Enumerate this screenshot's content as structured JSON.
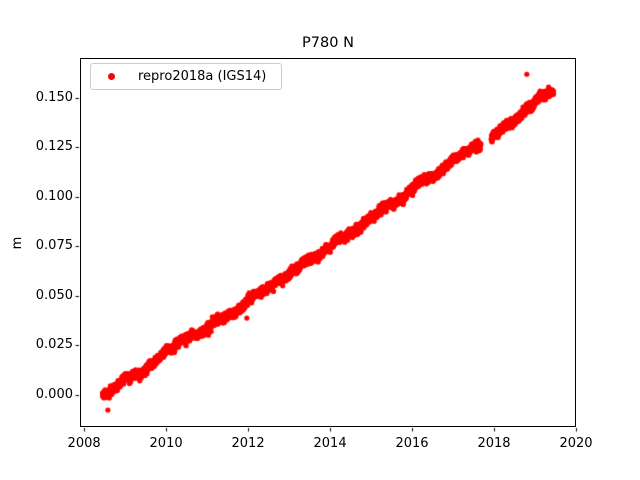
{
  "chart_data": {
    "type": "scatter",
    "title": "P780 N",
    "xlabel": "",
    "ylabel": "m",
    "grid": false,
    "xlim": [
      2007.9,
      2020.0
    ],
    "ylim": [
      -0.0162,
      0.1702
    ],
    "xticks": [
      {
        "value": 2008,
        "label": "2008"
      },
      {
        "value": 2010,
        "label": "2010"
      },
      {
        "value": 2012,
        "label": "2012"
      },
      {
        "value": 2014,
        "label": "2014"
      },
      {
        "value": 2016,
        "label": "2016"
      },
      {
        "value": 2018,
        "label": "2018"
      },
      {
        "value": 2020,
        "label": "2020"
      }
    ],
    "yticks": [
      {
        "value": 0.0,
        "label": "0.000"
      },
      {
        "value": 0.025,
        "label": "0.025"
      },
      {
        "value": 0.05,
        "label": "0.050"
      },
      {
        "value": 0.075,
        "label": "0.075"
      },
      {
        "value": 0.1,
        "label": "0.100"
      },
      {
        "value": 0.125,
        "label": "0.125"
      },
      {
        "value": 0.15,
        "label": "0.150"
      }
    ],
    "legend": {
      "location": "upper left",
      "entries": [
        {
          "label": "repro2018a (IGS14)",
          "marker": "dot",
          "color": "#ff0000"
        }
      ]
    },
    "series": [
      {
        "name": "repro2018a (IGS14)",
        "color": "#ff0000",
        "marker": "dot",
        "marker_radius_px": 2.6,
        "sampling": {
          "start": 2008.45,
          "end": 2019.45,
          "per_year": 365,
          "seed": 42,
          "noise_sigma": 0.001,
          "walk_phi": 0.98,
          "walk_sigma": 0.00018,
          "seasonal_amp": 0.0006
        },
        "gaps": [
          [
            2017.68,
            2017.93
          ]
        ],
        "trend_anchors": {
          "x": [
            2008.45,
            2008.8,
            2009.0,
            2009.5,
            2010.0,
            2010.5,
            2011.0,
            2011.5,
            2012.0,
            2012.5,
            2013.0,
            2013.5,
            2014.0,
            2014.3,
            2014.55,
            2015.0,
            2015.5,
            2016.0,
            2016.5,
            2017.0,
            2017.68,
            2017.93,
            2018.3,
            2018.7,
            2019.0,
            2019.15,
            2019.45
          ],
          "y": [
            0.0005,
            0.0045,
            0.008,
            0.013,
            0.022,
            0.027,
            0.0335,
            0.04,
            0.047,
            0.0545,
            0.0615,
            0.0685,
            0.0755,
            0.0795,
            0.081,
            0.0895,
            0.0965,
            0.1045,
            0.1105,
            0.1185,
            0.1265,
            0.1315,
            0.136,
            0.142,
            0.148,
            0.151,
            0.152
          ]
        },
        "outliers": [
          {
            "x": 2008.58,
            "y": -0.0076
          },
          {
            "x": 2011.97,
            "y": 0.0388
          },
          {
            "x": 2018.8,
            "y": 0.162
          }
        ]
      }
    ]
  }
}
